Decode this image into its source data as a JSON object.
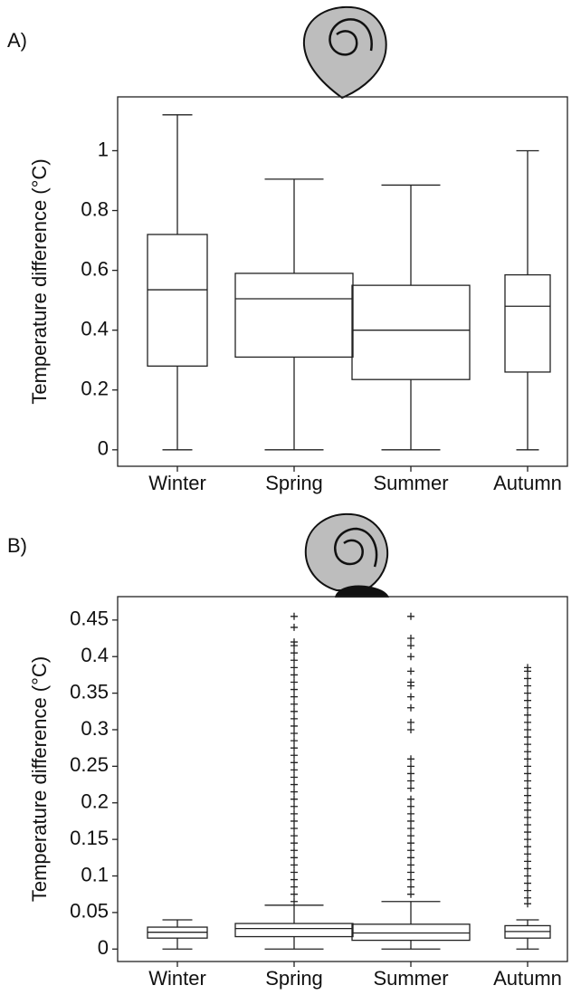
{
  "chart_data": [
    {
      "type": "box",
      "panel_label": "A)",
      "y_label": "Temperature difference (°C)",
      "categories": [
        "Winter",
        "Spring",
        "Summer",
        "Autumn"
      ],
      "whisker_low": [
        0,
        0,
        0,
        0
      ],
      "q1": [
        0.28,
        0.31,
        0.235,
        0.26
      ],
      "median": [
        0.535,
        0.505,
        0.4,
        0.48
      ],
      "q3": [
        0.72,
        0.59,
        0.55,
        0.585
      ],
      "whisker_high": [
        1.12,
        0.905,
        0.885,
        1.0
      ],
      "outliers": [
        [],
        [],
        [],
        []
      ],
      "ylim": [
        -0.055,
        1.18
      ],
      "yticks": [
        0,
        0.2,
        0.4,
        0.6,
        0.8,
        1
      ]
    },
    {
      "type": "box",
      "panel_label": "B)",
      "y_label": "Temperature difference (°C)",
      "categories": [
        "Winter",
        "Spring",
        "Summer",
        "Autumn"
      ],
      "whisker_low": [
        0,
        0,
        0,
        0
      ],
      "q1": [
        0.015,
        0.017,
        0.012,
        0.015
      ],
      "median": [
        0.023,
        0.028,
        0.022,
        0.024
      ],
      "q3": [
        0.03,
        0.035,
        0.034,
        0.032
      ],
      "whisker_high": [
        0.04,
        0.06,
        0.065,
        0.04
      ],
      "outliers": [
        [],
        [
          0.065,
          0.075,
          0.085,
          0.095,
          0.105,
          0.115,
          0.125,
          0.135,
          0.145,
          0.155,
          0.165,
          0.175,
          0.185,
          0.195,
          0.205,
          0.215,
          0.225,
          0.235,
          0.245,
          0.255,
          0.265,
          0.275,
          0.285,
          0.295,
          0.305,
          0.315,
          0.325,
          0.335,
          0.345,
          0.355,
          0.365,
          0.375,
          0.385,
          0.395,
          0.405,
          0.415,
          0.42,
          0.44,
          0.455
        ],
        [
          0.075,
          0.085,
          0.095,
          0.105,
          0.115,
          0.125,
          0.135,
          0.145,
          0.155,
          0.165,
          0.175,
          0.185,
          0.195,
          0.205,
          0.22,
          0.23,
          0.24,
          0.25,
          0.26,
          0.3,
          0.31,
          0.33,
          0.345,
          0.36,
          0.365,
          0.38,
          0.4,
          0.415,
          0.425,
          0.455
        ],
        [
          0.062,
          0.07,
          0.08,
          0.09,
          0.1,
          0.11,
          0.12,
          0.13,
          0.14,
          0.15,
          0.16,
          0.17,
          0.18,
          0.19,
          0.2,
          0.21,
          0.22,
          0.23,
          0.24,
          0.25,
          0.26,
          0.27,
          0.28,
          0.29,
          0.3,
          0.31,
          0.32,
          0.33,
          0.34,
          0.35,
          0.36,
          0.37,
          0.38,
          0.385
        ]
      ],
      "ylim": [
        -0.017,
        0.482
      ],
      "yticks": [
        0,
        0.05,
        0.1,
        0.15,
        0.2,
        0.25,
        0.3,
        0.35,
        0.4,
        0.45
      ]
    }
  ]
}
